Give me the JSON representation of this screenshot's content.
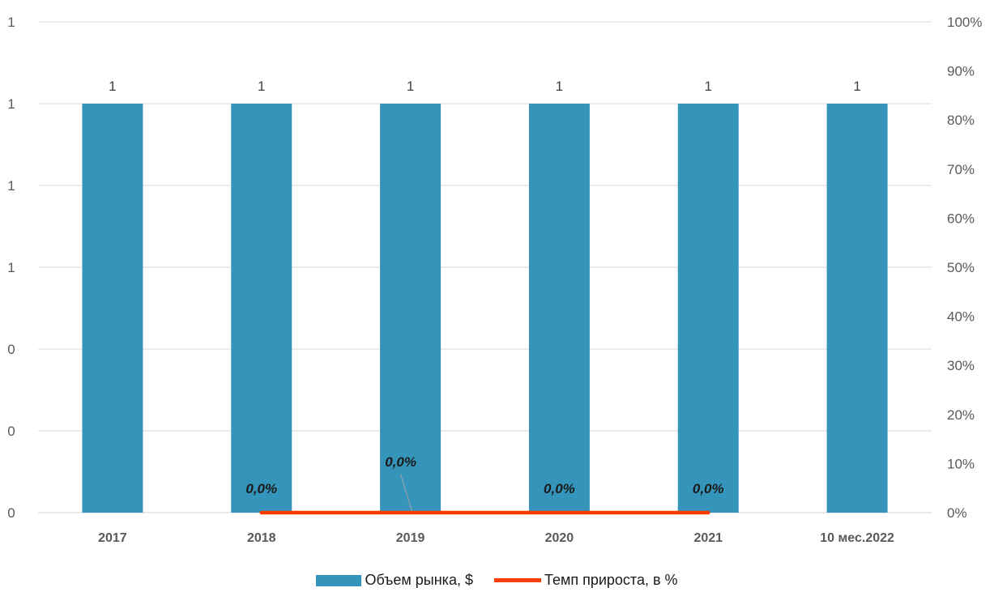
{
  "chart_data": {
    "type": "bar",
    "categories": [
      "2017",
      "2018",
      "2019",
      "2020",
      "2021",
      "10 мес.2022"
    ],
    "series": [
      {
        "name": "Объем рынка, $",
        "kind": "bar",
        "axis": "left",
        "values": [
          1,
          1,
          1,
          1,
          1,
          1
        ],
        "data_labels": [
          "1",
          "1",
          "1",
          "1",
          "1",
          "1"
        ],
        "color": "#3494BA"
      },
      {
        "name": "Темп прироста, в %",
        "kind": "line",
        "axis": "right",
        "values": [
          null,
          0,
          0,
          0,
          0,
          null
        ],
        "data_labels": [
          "",
          "0,0%",
          "0,0%",
          "0,0%",
          "0,0%",
          ""
        ],
        "color": "#FF3C00"
      }
    ],
    "y_left": {
      "tick_labels": [
        "0",
        "0",
        "0",
        "1",
        "1",
        "1",
        "1"
      ]
    },
    "y_right": {
      "ylim": [
        0,
        100
      ],
      "tick_labels": [
        "0%",
        "10%",
        "20%",
        "30%",
        "40%",
        "50%",
        "60%",
        "70%",
        "80%",
        "90%",
        "100%"
      ]
    },
    "grid": true,
    "legend_position": "bottom"
  }
}
